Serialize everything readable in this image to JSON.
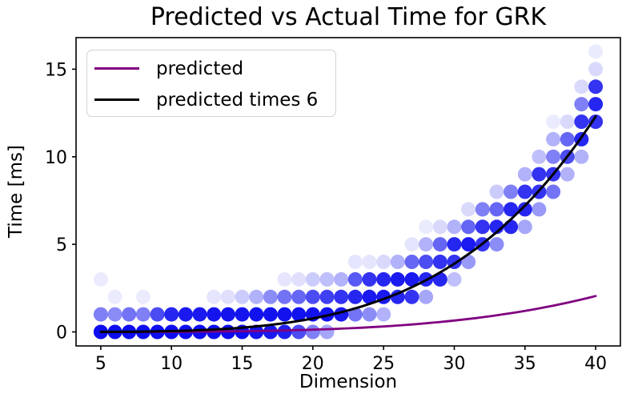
{
  "chart_data": {
    "type": "scatter",
    "title": "Predicted vs Actual Time for GRK",
    "xlabel": "Dimension",
    "ylabel": "Time [ms]",
    "xlim": [
      3.25,
      41.75
    ],
    "ylim": [
      -0.8,
      16.8
    ],
    "xticks": [
      5,
      10,
      15,
      20,
      25,
      30,
      35,
      40
    ],
    "yticks": [
      0,
      5,
      10,
      15
    ],
    "grid": false,
    "legend": {
      "position": "upper-left",
      "entries": [
        {
          "label": "predicted",
          "color": "#800080"
        },
        {
          "label": "predicted times 6",
          "color": "#000000"
        }
      ]
    },
    "marker_color": "#0000ee",
    "marker_radius": 9,
    "scatter_points_format": [
      "dimension",
      "time_ms",
      "opacity"
    ],
    "scatter_points": [
      [
        5,
        0,
        0.95
      ],
      [
        5,
        1,
        0.5
      ],
      [
        5,
        3,
        0.08
      ],
      [
        6,
        0,
        0.95
      ],
      [
        6,
        1,
        0.45
      ],
      [
        6,
        2,
        0.08
      ],
      [
        7,
        0,
        0.95
      ],
      [
        7,
        1,
        0.55
      ],
      [
        8,
        0,
        0.95
      ],
      [
        8,
        1,
        0.5
      ],
      [
        8,
        2,
        0.08
      ],
      [
        9,
        0,
        0.95
      ],
      [
        9,
        1,
        0.7
      ],
      [
        10,
        0,
        0.95
      ],
      [
        10,
        1,
        0.85
      ],
      [
        11,
        0,
        0.95
      ],
      [
        11,
        1,
        0.9
      ],
      [
        12,
        0,
        0.95
      ],
      [
        12,
        1,
        0.9
      ],
      [
        13,
        0,
        0.95
      ],
      [
        13,
        1,
        0.92
      ],
      [
        13,
        2,
        0.1
      ],
      [
        14,
        0,
        0.95
      ],
      [
        14,
        1,
        0.92
      ],
      [
        14,
        2,
        0.12
      ],
      [
        15,
        0,
        0.95
      ],
      [
        15,
        1,
        0.92
      ],
      [
        15,
        2,
        0.2
      ],
      [
        16,
        0,
        0.92
      ],
      [
        16,
        1,
        0.93
      ],
      [
        16,
        2,
        0.3
      ],
      [
        17,
        0,
        0.9
      ],
      [
        17,
        1,
        0.93
      ],
      [
        17,
        2,
        0.45
      ],
      [
        18,
        0,
        0.88
      ],
      [
        18,
        1,
        0.93
      ],
      [
        18,
        2,
        0.55
      ],
      [
        18,
        3,
        0.1
      ],
      [
        19,
        0,
        0.7
      ],
      [
        19,
        1,
        0.93
      ],
      [
        19,
        2,
        0.6
      ],
      [
        19,
        3,
        0.12
      ],
      [
        20,
        0,
        0.5
      ],
      [
        20,
        1,
        0.93
      ],
      [
        20,
        2,
        0.7
      ],
      [
        20,
        3,
        0.2
      ],
      [
        21,
        0,
        0.35
      ],
      [
        21,
        1,
        0.93
      ],
      [
        21,
        2,
        0.75
      ],
      [
        21,
        3,
        0.25
      ],
      [
        22,
        1,
        0.9
      ],
      [
        22,
        2,
        0.8
      ],
      [
        22,
        3,
        0.3
      ],
      [
        23,
        1,
        0.55
      ],
      [
        23,
        2,
        0.85
      ],
      [
        23,
        3,
        0.65
      ],
      [
        23,
        4,
        0.1
      ],
      [
        24,
        1,
        0.45
      ],
      [
        24,
        2,
        0.9
      ],
      [
        24,
        3,
        0.8
      ],
      [
        24,
        4,
        0.1
      ],
      [
        25,
        1,
        0.3
      ],
      [
        25,
        2,
        0.9
      ],
      [
        25,
        3,
        0.85
      ],
      [
        25,
        4,
        0.15
      ],
      [
        26,
        2,
        0.85
      ],
      [
        26,
        3,
        0.9
      ],
      [
        26,
        4,
        0.3
      ],
      [
        27,
        2,
        0.8
      ],
      [
        27,
        3,
        0.9
      ],
      [
        27,
        4,
        0.6
      ],
      [
        27,
        5,
        0.1
      ],
      [
        28,
        2,
        0.35
      ],
      [
        28,
        3,
        0.85
      ],
      [
        28,
        4,
        0.7
      ],
      [
        28,
        5,
        0.3
      ],
      [
        28,
        6,
        0.08
      ],
      [
        29,
        3,
        0.85
      ],
      [
        29,
        4,
        0.8
      ],
      [
        29,
        5,
        0.6
      ],
      [
        29,
        6,
        0.15
      ],
      [
        30,
        3,
        0.25
      ],
      [
        30,
        4,
        0.8
      ],
      [
        30,
        5,
        0.85
      ],
      [
        30,
        6,
        0.3
      ],
      [
        31,
        4,
        0.4
      ],
      [
        31,
        5,
        0.9
      ],
      [
        31,
        6,
        0.6
      ],
      [
        31,
        7,
        0.15
      ],
      [
        32,
        5,
        0.8
      ],
      [
        32,
        6,
        0.8
      ],
      [
        32,
        7,
        0.5
      ],
      [
        33,
        5,
        0.45
      ],
      [
        33,
        6,
        0.85
      ],
      [
        33,
        7,
        0.6
      ],
      [
        33,
        8,
        0.2
      ],
      [
        34,
        6,
        0.85
      ],
      [
        34,
        7,
        0.85
      ],
      [
        34,
        8,
        0.5
      ],
      [
        35,
        6,
        0.35
      ],
      [
        35,
        7,
        0.85
      ],
      [
        35,
        8,
        0.8
      ],
      [
        35,
        9,
        0.3
      ],
      [
        36,
        7,
        0.4
      ],
      [
        36,
        8,
        0.8
      ],
      [
        36,
        9,
        0.8
      ],
      [
        36,
        10,
        0.25
      ],
      [
        37,
        8,
        0.55
      ],
      [
        37,
        9,
        0.8
      ],
      [
        37,
        10,
        0.5
      ],
      [
        37,
        11,
        0.3
      ],
      [
        37,
        12,
        0.08
      ],
      [
        38,
        9,
        0.3
      ],
      [
        38,
        10,
        0.7
      ],
      [
        38,
        11,
        0.6
      ],
      [
        38,
        12,
        0.15
      ],
      [
        39,
        10,
        0.3
      ],
      [
        39,
        11,
        0.85
      ],
      [
        39,
        12,
        0.8
      ],
      [
        39,
        13,
        0.5
      ],
      [
        39,
        14,
        0.15
      ],
      [
        40,
        12,
        0.8
      ],
      [
        40,
        13,
        0.85
      ],
      [
        40,
        14,
        0.8
      ],
      [
        40,
        15,
        0.15
      ],
      [
        40,
        16,
        0.08
      ]
    ],
    "curves": [
      {
        "name": "predicted",
        "color": "#800080",
        "formula": "y = 2.05*(x/40)^4",
        "value_at_40": 2.05,
        "exponent": 4,
        "x_start": 5,
        "x_end": 40,
        "line_width": 2.8
      },
      {
        "name": "predicted times 6",
        "color": "#000000",
        "formula": "y = 12.3*(x/40)^4",
        "value_at_40": 12.3,
        "exponent": 4,
        "x_start": 5,
        "x_end": 40,
        "line_width": 3
      }
    ]
  }
}
